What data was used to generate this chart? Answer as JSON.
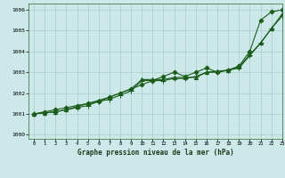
{
  "title": "Graphe pression niveau de la mer (hPa)",
  "background_color": "#cce8e8",
  "grid_color": "#aacccc",
  "line_color": "#1a5c1a",
  "xlim": [
    -0.5,
    23
  ],
  "ylim": [
    999.8,
    1006.3
  ],
  "yticks": [
    1000,
    1001,
    1002,
    1003,
    1004,
    1005,
    1006
  ],
  "xticks": [
    0,
    1,
    2,
    3,
    4,
    5,
    6,
    7,
    8,
    9,
    10,
    11,
    12,
    13,
    14,
    15,
    16,
    17,
    18,
    19,
    20,
    21,
    22,
    23
  ],
  "series": [
    [
      1001.0,
      1001.1,
      1001.2,
      1001.3,
      1001.4,
      1001.5,
      1001.6,
      1001.8,
      1002.0,
      1002.2,
      1002.4,
      1002.6,
      1002.8,
      1003.0,
      1002.8,
      1003.0,
      1003.2,
      1003.0,
      1003.1,
      1003.3,
      1004.0,
      1005.5,
      1005.9,
      1006.0
    ],
    [
      1001.0,
      1001.05,
      1001.1,
      1001.2,
      1001.3,
      1001.4,
      1001.6,
      1001.7,
      1001.9,
      1002.1,
      1002.6,
      1002.6,
      1002.6,
      1002.7,
      1002.7,
      1002.8,
      1003.0,
      1003.0,
      1003.1,
      1003.2,
      1003.8,
      1004.4,
      1005.1,
      1005.7
    ],
    [
      1001.0,
      1001.05,
      1001.1,
      1001.2,
      1001.35,
      1001.5,
      1001.65,
      1001.8,
      1002.0,
      1002.2,
      1002.65,
      1002.65,
      1002.65,
      1002.75,
      1002.75,
      1002.75,
      1003.0,
      1003.05,
      1003.1,
      1003.25,
      1003.85,
      1004.4,
      1005.1,
      1005.8
    ]
  ],
  "markers": [
    "D",
    "+",
    "^"
  ],
  "marker_sizes": [
    2.5,
    4,
    3
  ],
  "linewidths": [
    0.8,
    0.8,
    0.8
  ]
}
